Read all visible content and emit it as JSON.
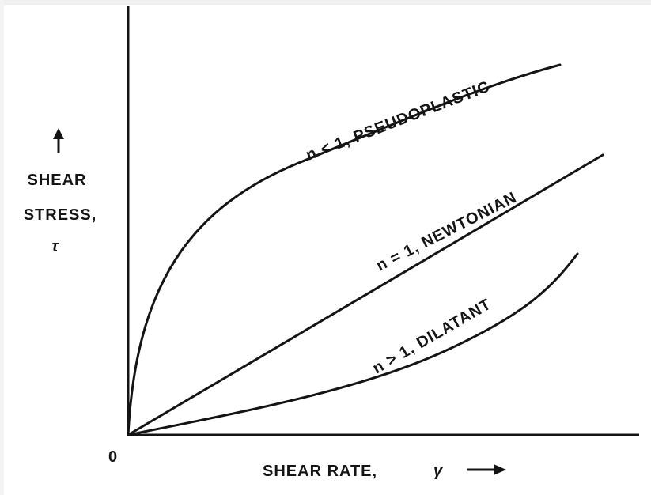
{
  "y_axis": {
    "lines": [
      "SHEAR",
      "STRESS,",
      "τ"
    ]
  },
  "x_axis": {
    "label": "SHEAR RATE,",
    "symbol": "γ"
  },
  "origin": "0",
  "curves": [
    {
      "label": "n < 1, PSEUDOPLASTIC"
    },
    {
      "label": "n = 1, NEWTONIAN"
    },
    {
      "label": "n > 1, DILATANT"
    }
  ]
}
